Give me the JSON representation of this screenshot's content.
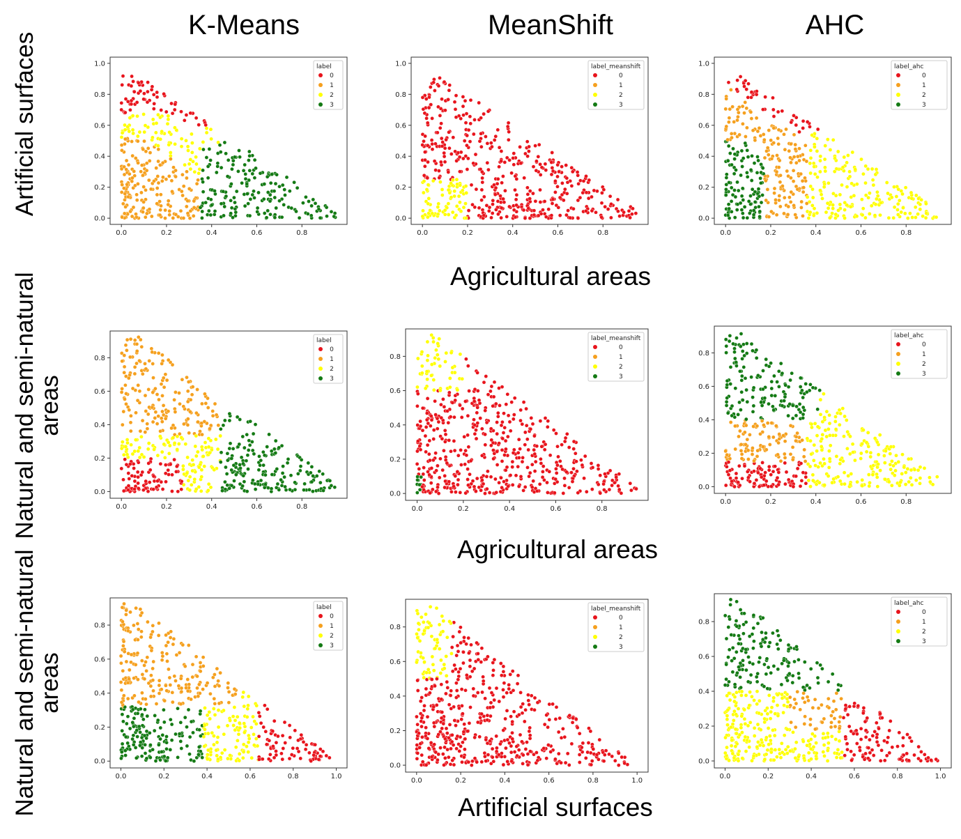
{
  "column_titles": [
    "K-Means",
    "MeanShift",
    "AHC"
  ],
  "row_y_labels": [
    [
      "Artificial surfaces"
    ],
    [
      "Natural and semi-natural",
      "areas"
    ],
    [
      "Natural and semi-natural",
      "areas"
    ]
  ],
  "row_x_labels": [
    "Agricultural areas",
    "Agricultural areas",
    "Artificial surfaces"
  ],
  "cluster_colors": [
    "#e8141c",
    "#f5a01e",
    "#ffff00",
    "#147a14"
  ],
  "chart_data": [
    {
      "type": "scatter",
      "row": 0,
      "col": 0,
      "legend_title": "label",
      "legend_entries": [
        "0",
        "1",
        "2",
        "3"
      ],
      "legend_position": "top-right",
      "x_ticks": [
        "0.0",
        "0.2",
        "0.4",
        "0.6",
        "0.8"
      ],
      "y_ticks": [
        "0.0",
        "0.2",
        "0.4",
        "0.6",
        "0.8",
        "1.0"
      ],
      "xlim": [
        -0.05,
        1.0
      ],
      "ylim": [
        -0.04,
        1.04
      ],
      "pattern": "r1_km",
      "point_count": 520
    },
    {
      "type": "scatter",
      "row": 0,
      "col": 1,
      "legend_title": "label_meanshift",
      "legend_entries": [
        "0",
        "1",
        "2",
        "3"
      ],
      "legend_position": "top-right",
      "x_ticks": [
        "0.0",
        "0.2",
        "0.4",
        "0.6",
        "0.8"
      ],
      "y_ticks": [
        "0.0",
        "0.2",
        "0.4",
        "0.6",
        "0.8",
        "1.0"
      ],
      "xlim": [
        -0.05,
        1.0
      ],
      "ylim": [
        -0.04,
        1.04
      ],
      "pattern": "r1_ms",
      "point_count": 520
    },
    {
      "type": "scatter",
      "row": 0,
      "col": 2,
      "legend_title": "label_ahc",
      "legend_entries": [
        "0",
        "1",
        "2",
        "3"
      ],
      "legend_position": "top-right",
      "x_ticks": [
        "0.0",
        "0.2",
        "0.4",
        "0.6",
        "0.8"
      ],
      "y_ticks": [
        "0.0",
        "0.2",
        "0.4",
        "0.6",
        "0.8",
        "1.0"
      ],
      "xlim": [
        -0.05,
        1.0
      ],
      "ylim": [
        -0.04,
        1.04
      ],
      "pattern": "r1_ahc",
      "point_count": 520
    },
    {
      "type": "scatter",
      "row": 1,
      "col": 0,
      "legend_title": "label",
      "legend_entries": [
        "0",
        "1",
        "2",
        "3"
      ],
      "legend_position": "top-right",
      "x_ticks": [
        "0.0",
        "0.2",
        "0.4",
        "0.6",
        "0.8"
      ],
      "y_ticks": [
        "0.0",
        "0.2",
        "0.4",
        "0.6",
        "0.8"
      ],
      "xlim": [
        -0.05,
        1.0
      ],
      "ylim": [
        -0.04,
        0.96
      ],
      "pattern": "r2_km",
      "point_count": 560
    },
    {
      "type": "scatter",
      "row": 1,
      "col": 1,
      "legend_title": "label_meanshift",
      "legend_entries": [
        "0",
        "1",
        "2",
        "3"
      ],
      "legend_position": "top-right",
      "x_ticks": [
        "0.0",
        "0.2",
        "0.4",
        "0.6",
        "0.8"
      ],
      "y_ticks": [
        "0.0",
        "0.2",
        "0.4",
        "0.6",
        "0.8"
      ],
      "xlim": [
        -0.05,
        1.0
      ],
      "ylim": [
        -0.04,
        0.96
      ],
      "pattern": "r2_ms",
      "point_count": 560
    },
    {
      "type": "scatter",
      "row": 1,
      "col": 2,
      "legend_title": "label_ahc",
      "legend_entries": [
        "0",
        "1",
        "2",
        "3"
      ],
      "legend_position": "top-right",
      "x_ticks": [
        "0.0",
        "0.2",
        "0.4",
        "0.6",
        "0.8"
      ],
      "y_ticks": [
        "0.0",
        "0.2",
        "0.4",
        "0.6",
        "0.8"
      ],
      "xlim": [
        -0.05,
        1.0
      ],
      "ylim": [
        -0.04,
        0.96
      ],
      "pattern": "r2_ahc",
      "point_count": 560
    },
    {
      "type": "scatter",
      "row": 2,
      "col": 0,
      "legend_title": "label",
      "legend_entries": [
        "0",
        "1",
        "2",
        "3"
      ],
      "legend_position": "top-right",
      "x_ticks": [
        "0.0",
        "0.2",
        "0.4",
        "0.6",
        "0.8",
        "1.0"
      ],
      "y_ticks": [
        "0.0",
        "0.2",
        "0.4",
        "0.6",
        "0.8"
      ],
      "xlim": [
        -0.05,
        1.05
      ],
      "ylim": [
        -0.04,
        0.96
      ],
      "pattern": "r3_km",
      "point_count": 560
    },
    {
      "type": "scatter",
      "row": 2,
      "col": 1,
      "legend_title": "label_meanshift",
      "legend_entries": [
        "0",
        "1",
        "2",
        "3"
      ],
      "legend_position": "top-right",
      "x_ticks": [
        "0.0",
        "0.2",
        "0.4",
        "0.6",
        "0.8",
        "1.0"
      ],
      "y_ticks": [
        "0.0",
        "0.2",
        "0.4",
        "0.6",
        "0.8"
      ],
      "xlim": [
        -0.05,
        1.05
      ],
      "ylim": [
        -0.04,
        0.96
      ],
      "pattern": "r3_ms",
      "point_count": 560
    },
    {
      "type": "scatter",
      "row": 2,
      "col": 2,
      "legend_title": "label_ahc",
      "legend_entries": [
        "0",
        "1",
        "2",
        "3"
      ],
      "legend_position": "top-right",
      "x_ticks": [
        "0.0",
        "0.2",
        "0.4",
        "0.6",
        "0.8",
        "1.0"
      ],
      "y_ticks": [
        "0.0",
        "0.2",
        "0.4",
        "0.6",
        "0.8"
      ],
      "xlim": [
        -0.05,
        1.05
      ],
      "ylim": [
        -0.04,
        0.96
      ],
      "pattern": "r3_ahc",
      "point_count": 560
    }
  ]
}
